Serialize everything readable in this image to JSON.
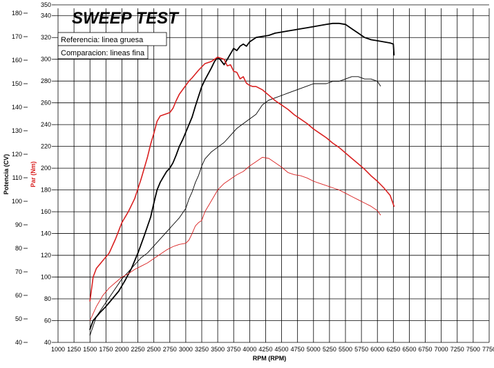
{
  "chart_data": {
    "type": "line",
    "title": "SWEEP TEST",
    "legend": {
      "reference": "Referencia: linea gruesa",
      "comparison": "Comparacion: lineas fina"
    },
    "xlabel": "RPM (RPM)",
    "ylabel_power": "Potencia (CV)",
    "ylabel_torque": "Par (Nm)",
    "x_ticks": [
      1000,
      1250,
      1500,
      1750,
      2000,
      2250,
      2500,
      2750,
      3000,
      3250,
      3500,
      3750,
      4000,
      4250,
      4500,
      4750,
      5000,
      5250,
      5500,
      5750,
      6000,
      6250,
      6500,
      6750,
      7000,
      7250,
      7500,
      7750
    ],
    "x_tick_labels": [
      "1000",
      "1250",
      "1500",
      "1750",
      "2000",
      "2250",
      "2500",
      "2750",
      "3000",
      "3250",
      "3500",
      "3750",
      "4000",
      "4250",
      "4500",
      "4750",
      "5000",
      "5250",
      "5500",
      "5750",
      "6000",
      "6250",
      "6500",
      "6750",
      "7000",
      "7250",
      "7500",
      "7750"
    ],
    "xlim": [
      1000,
      7750
    ],
    "power_axis": {
      "ylim": [
        40,
        180
      ],
      "ticks": [
        40,
        50,
        60,
        70,
        80,
        90,
        100,
        110,
        120,
        130,
        140,
        150,
        160,
        170,
        180
      ],
      "tick_labels": [
        "40",
        "50",
        "60",
        "70",
        "80",
        "90",
        "100",
        "110",
        "120",
        "130",
        "140",
        "150",
        "160",
        "170",
        "180"
      ],
      "color": "#000000"
    },
    "torque_axis": {
      "ylim": [
        40,
        350
      ],
      "ticks": [
        40,
        60,
        80,
        100,
        120,
        140,
        160,
        180,
        200,
        220,
        240,
        260,
        280,
        300,
        320,
        340,
        350
      ],
      "tick_labels": [
        "40",
        "60",
        "80",
        "100",
        "120",
        "140",
        "160",
        "180",
        "200",
        "220",
        "240",
        "260",
        "280",
        "300",
        "320",
        "340",
        "350"
      ],
      "color": "#d92020"
    },
    "grid": true,
    "series": [
      {
        "color": "#000000",
        "width": 1.8,
        "axis": "torque",
        "x": [
          1500,
          1550,
          1650,
          1750,
          1850,
          1950,
          2050,
          2150,
          2250,
          2350,
          2450,
          2500,
          2550,
          2600,
          2650,
          2700,
          2750,
          2800,
          2850,
          2900,
          2950,
          3000,
          3100,
          3150,
          3200,
          3250,
          3300,
          3400,
          3450,
          3500,
          3550,
          3600,
          3650,
          3700,
          3750,
          3800,
          3850,
          3900,
          3950,
          4000,
          4050,
          4100,
          4200,
          4300,
          4400,
          4500,
          4600,
          4700,
          4800,
          4900,
          5000,
          5100,
          5200,
          5300,
          5400,
          5500,
          5600,
          5700,
          5800,
          5900,
          6000,
          6100,
          6200,
          6250,
          6260
        ],
        "values": [
          52,
          60,
          67,
          73,
          80,
          87,
          97,
          108,
          122,
          138,
          155,
          168,
          180,
          187,
          192,
          197,
          200,
          205,
          212,
          220,
          226,
          233,
          247,
          257,
          266,
          275,
          281,
          292,
          298,
          302,
          299,
          295,
          300,
          305,
          310,
          308,
          312,
          314,
          312,
          316,
          318,
          320,
          321,
          322,
          324,
          325,
          326,
          327,
          328,
          329,
          330,
          331,
          332,
          333,
          333,
          332,
          328,
          324,
          320,
          318,
          317,
          316,
          315,
          314,
          304
        ]
      },
      {
        "color": "#000000",
        "width": 0.9,
        "axis": "power",
        "x": [
          1500,
          1600,
          1700,
          1800,
          1900,
          2000,
          2100,
          2200,
          2300,
          2400,
          2500,
          2600,
          2700,
          2800,
          2900,
          3000,
          3050,
          3100,
          3150,
          3200,
          3250,
          3300,
          3400,
          3500,
          3600,
          3700,
          3800,
          3900,
          4000,
          4100,
          4200,
          4300,
          4400,
          4500,
          4600,
          4700,
          4800,
          4900,
          5000,
          5100,
          5200,
          5300,
          5400,
          5500,
          5600,
          5700,
          5800,
          5900,
          6000,
          6050
        ],
        "values": [
          43,
          51,
          55,
          59,
          63,
          67,
          70,
          73,
          76,
          78,
          81,
          84,
          87,
          90,
          93,
          97,
          101,
          104,
          108,
          111,
          115,
          118,
          121,
          123,
          125,
          128,
          131,
          133,
          135,
          137,
          141,
          143,
          144,
          145,
          146,
          147,
          148,
          149,
          150,
          150,
          150,
          151,
          151,
          152,
          153,
          153,
          152,
          152,
          151,
          149
        ]
      },
      {
        "color": "#d92020",
        "width": 1.6,
        "axis": "torque",
        "x": [
          1500,
          1550,
          1600,
          1700,
          1800,
          1900,
          2000,
          2100,
          2200,
          2300,
          2400,
          2450,
          2500,
          2550,
          2600,
          2700,
          2750,
          2800,
          2850,
          2900,
          3000,
          3050,
          3100,
          3200,
          3300,
          3400,
          3450,
          3500,
          3550,
          3600,
          3650,
          3700,
          3750,
          3800,
          3850,
          3900,
          3950,
          4000,
          4050,
          4100,
          4200,
          4300,
          4400,
          4500,
          4600,
          4700,
          4800,
          4900,
          5000,
          5100,
          5200,
          5300,
          5400,
          5500,
          5600,
          5700,
          5800,
          5900,
          6000,
          6100,
          6200,
          6230,
          6260
        ],
        "values": [
          78,
          100,
          108,
          115,
          122,
          135,
          150,
          160,
          172,
          190,
          210,
          222,
          232,
          243,
          248,
          250,
          251,
          255,
          262,
          268,
          276,
          280,
          283,
          290,
          296,
          298,
          300,
          302,
          301,
          300,
          294,
          295,
          289,
          288,
          282,
          284,
          278,
          276,
          275,
          275,
          272,
          267,
          262,
          258,
          254,
          249,
          245,
          241,
          236,
          232,
          228,
          223,
          219,
          214,
          209,
          204,
          199,
          193,
          188,
          182,
          175,
          170,
          165
        ]
      },
      {
        "color": "#d92020",
        "width": 0.9,
        "axis": "torque",
        "x": [
          1500,
          1600,
          1700,
          1800,
          1900,
          2000,
          2100,
          2200,
          2300,
          2400,
          2500,
          2600,
          2700,
          2800,
          2900,
          3000,
          3050,
          3100,
          3150,
          3200,
          3250,
          3300,
          3400,
          3500,
          3600,
          3700,
          3800,
          3900,
          4000,
          4100,
          4200,
          4300,
          4400,
          4500,
          4600,
          4700,
          4800,
          4900,
          5000,
          5100,
          5200,
          5300,
          5400,
          5500,
          5600,
          5700,
          5800,
          5900,
          6000,
          6050
        ],
        "values": [
          60,
          73,
          83,
          90,
          95,
          100,
          103,
          107,
          110,
          113,
          117,
          121,
          125,
          128,
          130,
          131,
          134,
          140,
          147,
          150,
          152,
          160,
          170,
          180,
          186,
          190,
          194,
          197,
          202,
          206,
          210,
          209,
          205,
          201,
          196,
          194,
          193,
          191,
          188,
          186,
          184,
          182,
          180,
          177,
          174,
          171,
          168,
          165,
          161,
          157
        ]
      }
    ]
  }
}
